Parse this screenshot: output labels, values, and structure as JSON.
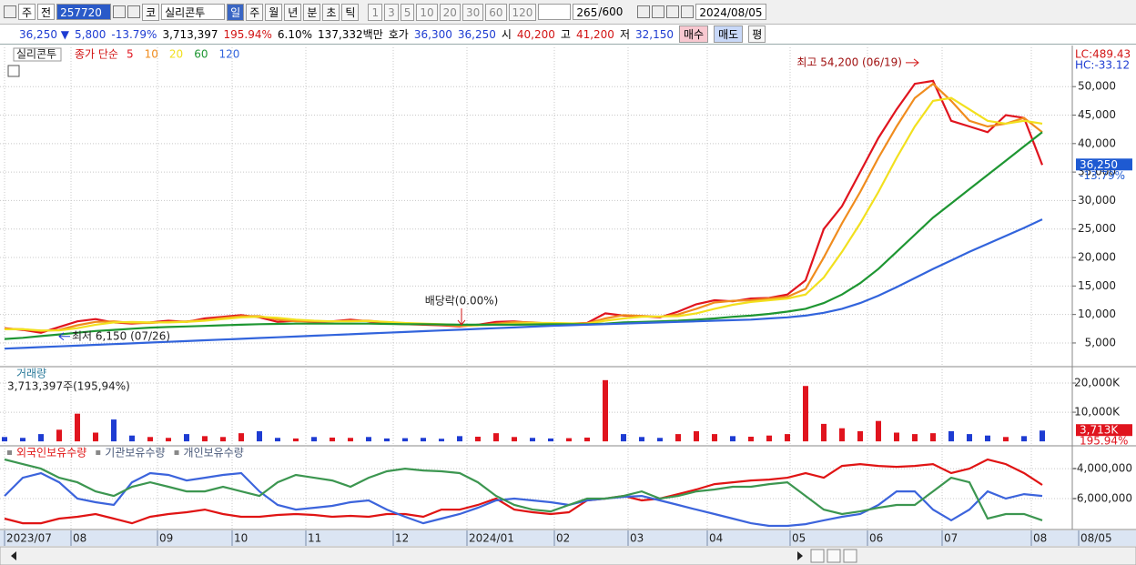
{
  "toolbar": {
    "market": "주",
    "scope": "전",
    "code": "257720",
    "prefix": "코",
    "name": "실리콘투",
    "periods": [
      "일",
      "주",
      "월",
      "년",
      "분",
      "초",
      "틱"
    ],
    "intervals": [
      "1",
      "3",
      "5",
      "10",
      "20",
      "30",
      "60",
      "120"
    ],
    "count": "265",
    "max": "/600",
    "date": "2024/08/05"
  },
  "infobar": {
    "price": "36,250 ▼",
    "change": "5,800",
    "rate": "-13.79%",
    "volume": "3,713,397",
    "volume_rate": "195.94%",
    "turnover": "6.10%",
    "amount": "137,332백만",
    "quote_label": "호가",
    "ask": "36,300",
    "bid": "36,250",
    "open_label": "시",
    "open": "40,200",
    "high_label": "고",
    "high": "41,200",
    "low_label": "저",
    "low": "32,150",
    "buy": "매수",
    "sell": "매도",
    "avg": "평"
  },
  "chart_data": [
    {
      "type": "line",
      "symbol": "실리콘투",
      "ma_label": "종가 단순",
      "corner_labels": [
        "LC:489.43",
        "HC:-33.12"
      ],
      "xlim": [
        0,
        58.5
      ],
      "ylim": [
        1000,
        56900
      ],
      "yticks": [
        {
          "value": 5000,
          "label": "5,000"
        },
        {
          "value": 10000,
          "label": "10,000"
        },
        {
          "value": 15000,
          "label": "15,000"
        },
        {
          "value": 20000,
          "label": "20,000"
        },
        {
          "value": 25000,
          "label": "25,000"
        },
        {
          "value": 30000,
          "label": "30,000"
        },
        {
          "value": 35000,
          "label": "35,000"
        },
        {
          "value": 40000,
          "label": "40,000"
        },
        {
          "value": 45000,
          "label": "45,000"
        },
        {
          "value": 50000,
          "label": "50,000"
        }
      ],
      "last": {
        "value": 36250,
        "label": "36,250",
        "change": "-13.79%"
      },
      "annotations": [
        {
          "text": "최고 54,200 (06/19)",
          "x": 50.2,
          "y": 54200
        },
        {
          "text": "최저 6,150 (07/26)",
          "x": 3,
          "y": 6150
        },
        {
          "text": "배당락(0.00%)",
          "x": 25.1,
          "y": 8200
        }
      ],
      "series": [
        {
          "name": "5",
          "color": "#e0141e",
          "values": [
            7600,
            7300,
            6800,
            7800,
            8800,
            9200,
            8600,
            8400,
            8600,
            8900,
            8700,
            9300,
            9600,
            9900,
            9500,
            8700,
            8900,
            8700,
            8800,
            9100,
            8800,
            8400,
            8300,
            8200,
            8100,
            7900,
            8200,
            8700,
            8800,
            8500,
            8300,
            8400,
            8500,
            10200,
            9800,
            9700,
            9500,
            10500,
            11800,
            12500,
            12300,
            12800,
            12900,
            13500,
            16000,
            25000,
            29000,
            35000,
            41000,
            46000,
            50500,
            51000,
            44000,
            43000,
            42000,
            45000,
            44500,
            36250
          ]
        },
        {
          "name": "10",
          "color": "#f08c1e",
          "values": [
            7500,
            7400,
            7100,
            7300,
            8100,
            8700,
            8800,
            8500,
            8500,
            8700,
            8800,
            9000,
            9400,
            9700,
            9700,
            9100,
            8800,
            8800,
            8800,
            8900,
            8900,
            8600,
            8400,
            8300,
            8200,
            8000,
            8100,
            8400,
            8700,
            8600,
            8400,
            8400,
            8450,
            9300,
            9900,
            9750,
            9600,
            10000,
            11000,
            12100,
            12400,
            12500,
            12800,
            13100,
            14500,
            20000,
            26000,
            31500,
            37500,
            43000,
            48000,
            50500,
            47500,
            44000,
            43000,
            43500,
            44500,
            42000
          ]
        },
        {
          "name": "20",
          "color": "#f2e01e",
          "values": [
            7400,
            7400,
            7200,
            7200,
            7600,
            8200,
            8600,
            8700,
            8600,
            8600,
            8700,
            8900,
            9200,
            9500,
            9600,
            9400,
            9100,
            8900,
            8800,
            8800,
            8850,
            8700,
            8500,
            8400,
            8300,
            8150,
            8100,
            8200,
            8400,
            8500,
            8500,
            8450,
            8400,
            8900,
            9300,
            9600,
            9650,
            9700,
            10200,
            11000,
            11700,
            12200,
            12500,
            12800,
            13500,
            16500,
            21000,
            26000,
            31500,
            37500,
            43000,
            47500,
            48000,
            46000,
            44000,
            43500,
            44000,
            43500
          ]
        },
        {
          "name": "60",
          "color": "#1e9632",
          "values": [
            5700,
            5900,
            6200,
            6500,
            6800,
            7100,
            7300,
            7500,
            7700,
            7800,
            7900,
            8000,
            8100,
            8200,
            8300,
            8350,
            8400,
            8400,
            8400,
            8400,
            8400,
            8350,
            8300,
            8300,
            8250,
            8200,
            8200,
            8200,
            8200,
            8250,
            8300,
            8300,
            8300,
            8400,
            8600,
            8700,
            8800,
            8900,
            9100,
            9300,
            9600,
            9800,
            10100,
            10500,
            11000,
            12000,
            13500,
            15500,
            18000,
            21000,
            24000,
            27000,
            29500,
            32000,
            34500,
            37000,
            39500,
            42000
          ]
        },
        {
          "name": "120",
          "color": "#3264dc",
          "values": [
            4000,
            4130,
            4270,
            4400,
            4530,
            4670,
            4800,
            4930,
            5070,
            5200,
            5330,
            5470,
            5600,
            5730,
            5870,
            6000,
            6130,
            6270,
            6400,
            6530,
            6670,
            6800,
            6930,
            7070,
            7200,
            7330,
            7470,
            7600,
            7730,
            7870,
            8000,
            8100,
            8200,
            8300,
            8400,
            8500,
            8600,
            8700,
            8800,
            8900,
            9000,
            9100,
            9300,
            9500,
            9800,
            10300,
            11000,
            12000,
            13300,
            14800,
            16400,
            18000,
            19500,
            21000,
            22400,
            23800,
            25200,
            26700
          ]
        }
      ]
    },
    {
      "type": "bar",
      "title": "거래량",
      "subtitle": "3,713,397주(195,94%)",
      "xlim": [
        0,
        58.5
      ],
      "ylim": [
        -900,
        25000
      ],
      "yticks": [
        {
          "value": 10000,
          "label": "10,000K"
        },
        {
          "value": 20000,
          "label": "20,000K"
        }
      ],
      "last": {
        "value": 3713,
        "label": "3,713K",
        "change": "195.94%"
      },
      "values": [
        1500,
        1200,
        2500,
        4000,
        9500,
        3000,
        7500,
        2000,
        1500,
        1200,
        2500,
        1800,
        1500,
        2800,
        3500,
        1200,
        1000,
        1500,
        1300,
        1200,
        1500,
        1000,
        1100,
        1200,
        900,
        1800,
        1600,
        2800,
        1500,
        1200,
        1000,
        1100,
        1300,
        21000,
        2500,
        1500,
        1200,
        2500,
        3500,
        2500,
        1800,
        1600,
        2000,
        2500,
        19000,
        6000,
        4500,
        3500,
        7000,
        3000,
        2500,
        2800,
        3500,
        2500,
        2000,
        1500,
        1800,
        3713
      ],
      "colors": [
        "#1e3cd2",
        "#1e3cd2",
        "#1e3cd2",
        "#e0141e",
        "#e0141e",
        "#e0141e",
        "#1e3cd2",
        "#1e3cd2",
        "#e0141e",
        "#e0141e",
        "#1e3cd2",
        "#e0141e",
        "#e0141e",
        "#e0141e",
        "#1e3cd2",
        "#1e3cd2",
        "#e0141e",
        "#1e3cd2",
        "#e0141e",
        "#e0141e",
        "#1e3cd2",
        "#1e3cd2",
        "#1e3cd2",
        "#1e3cd2",
        "#1e3cd2",
        "#1e3cd2",
        "#e0141e",
        "#e0141e",
        "#e0141e",
        "#1e3cd2",
        "#1e3cd2",
        "#e0141e",
        "#e0141e",
        "#e0141e",
        "#1e3cd2",
        "#1e3cd2",
        "#1e3cd2",
        "#e0141e",
        "#e0141e",
        "#e0141e",
        "#1e3cd2",
        "#e0141e",
        "#e0141e",
        "#e0141e",
        "#e0141e",
        "#e0141e",
        "#e0141e",
        "#e0141e",
        "#e0141e",
        "#e0141e",
        "#e0141e",
        "#e0141e",
        "#1e3cd2",
        "#1e3cd2",
        "#1e3cd2",
        "#e0141e",
        "#1e3cd2",
        "#1e3cd2"
      ]
    },
    {
      "type": "line",
      "xlim": [
        0,
        58.5
      ],
      "ylim": [
        -8060000,
        -2600000
      ],
      "yticks": [
        {
          "value": -6000000,
          "label": "-6,000,000"
        },
        {
          "value": -4000000,
          "label": "-4,000,000"
        }
      ],
      "xticks": [
        {
          "value": 0,
          "label": "2023/07"
        },
        {
          "value": 3.65,
          "label": "08"
        },
        {
          "value": 8.4,
          "label": "09"
        },
        {
          "value": 12.5,
          "label": "10"
        },
        {
          "value": 16.55,
          "label": "11"
        },
        {
          "value": 21.35,
          "label": "12"
        },
        {
          "value": 25.4,
          "label": "2024/01"
        },
        {
          "value": 30.2,
          "label": "02"
        },
        {
          "value": 34.25,
          "label": "03"
        },
        {
          "value": 38.6,
          "label": "04"
        },
        {
          "value": 43.15,
          "label": "05"
        },
        {
          "value": 47.4,
          "label": "06"
        },
        {
          "value": 51.5,
          "label": "07"
        },
        {
          "value": 56.4,
          "label": "08"
        },
        {
          "value": 59,
          "label": "08/05"
        }
      ],
      "series": [
        {
          "name": "외국인보유수량",
          "color": "#e01414",
          "values": [
            -7330000,
            -7640000,
            -7640000,
            -7330000,
            -7210000,
            -7030000,
            -7330000,
            -7640000,
            -7210000,
            -7030000,
            -6910000,
            -6730000,
            -7030000,
            -7210000,
            -7210000,
            -7090000,
            -7030000,
            -7090000,
            -7210000,
            -7150000,
            -7210000,
            -7030000,
            -7030000,
            -7210000,
            -6730000,
            -6730000,
            -6420000,
            -6000000,
            -6730000,
            -6910000,
            -7030000,
            -6910000,
            -6120000,
            -6000000,
            -5820000,
            -6120000,
            -6000000,
            -5700000,
            -5390000,
            -5030000,
            -4910000,
            -4790000,
            -4730000,
            -4610000,
            -4300000,
            -4610000,
            -3820000,
            -3700000,
            -3820000,
            -3880000,
            -3820000,
            -3700000,
            -4300000,
            -4000000,
            -3390000,
            -3700000,
            -4300000,
            -5090000
          ]
        },
        {
          "name": "기관보유수량",
          "color": "#3c64dc",
          "values": [
            -5820000,
            -4610000,
            -4300000,
            -4910000,
            -6000000,
            -6240000,
            -6420000,
            -4910000,
            -4300000,
            -4420000,
            -4790000,
            -4610000,
            -4420000,
            -4300000,
            -5520000,
            -6420000,
            -6730000,
            -6610000,
            -6480000,
            -6240000,
            -6120000,
            -6730000,
            -7210000,
            -7640000,
            -7330000,
            -7030000,
            -6610000,
            -6120000,
            -6000000,
            -6120000,
            -6240000,
            -6420000,
            -6120000,
            -6000000,
            -5880000,
            -5820000,
            -6120000,
            -6420000,
            -6730000,
            -7030000,
            -7330000,
            -7640000,
            -7820000,
            -7820000,
            -7700000,
            -7450000,
            -7210000,
            -7030000,
            -6420000,
            -5520000,
            -5520000,
            -6730000,
            -7450000,
            -6730000,
            -5520000,
            -6000000,
            -5700000,
            -5820000
          ]
        },
        {
          "name": "개인보유수량",
          "color": "#3c9650",
          "values": [
            -3390000,
            -3700000,
            -4000000,
            -4610000,
            -4910000,
            -5520000,
            -5820000,
            -5210000,
            -4910000,
            -5210000,
            -5520000,
            -5520000,
            -5210000,
            -5520000,
            -5820000,
            -4910000,
            -4420000,
            -4610000,
            -4790000,
            -5210000,
            -4610000,
            -4180000,
            -4000000,
            -4120000,
            -4180000,
            -4300000,
            -4910000,
            -5820000,
            -6420000,
            -6730000,
            -6850000,
            -6420000,
            -6000000,
            -6000000,
            -5820000,
            -5520000,
            -6000000,
            -5820000,
            -5520000,
            -5390000,
            -5210000,
            -5210000,
            -5030000,
            -4910000,
            -5820000,
            -6730000,
            -7030000,
            -6850000,
            -6610000,
            -6420000,
            -6420000,
            -5520000,
            -4610000,
            -4910000,
            -7330000,
            -7030000,
            -7030000,
            -7450000
          ]
        }
      ]
    }
  ]
}
